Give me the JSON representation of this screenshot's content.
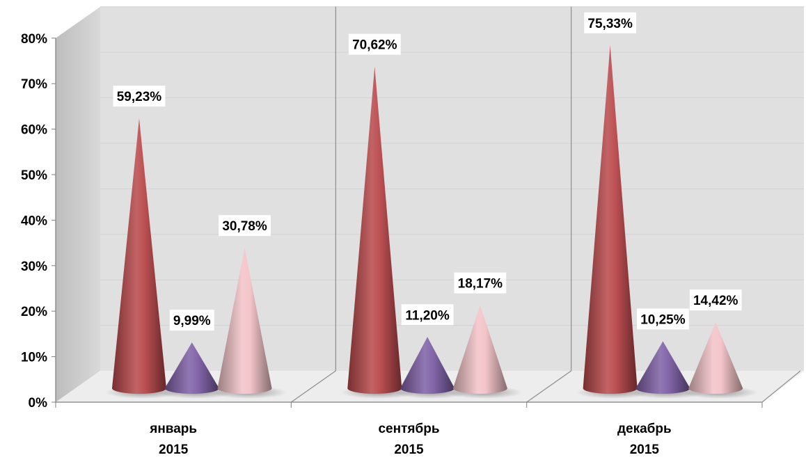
{
  "chart_data": {
    "type": "bar",
    "style": "3d-cone",
    "categories": [
      [
        "январь",
        "2015"
      ],
      [
        "сентябрь",
        "2015"
      ],
      [
        "декабрь",
        "2015"
      ]
    ],
    "series": [
      {
        "values": [
          59.23,
          70.62,
          75.33
        ],
        "labels": [
          "59,23%",
          "70,62%",
          "75,33%"
        ],
        "color": "#b8474a"
      },
      {
        "values": [
          9.99,
          11.2,
          10.25
        ],
        "labels": [
          "9,99%",
          "11,20%",
          "10,25%"
        ],
        "color": "#7e5fa6"
      },
      {
        "values": [
          30.78,
          18.17,
          14.42
        ],
        "labels": [
          "30,78%",
          "18,17%",
          "14,42%"
        ],
        "color": "#f2c2c6"
      }
    ],
    "ylim": [
      0,
      80
    ],
    "yticks": [
      0,
      10,
      20,
      30,
      40,
      50,
      60,
      70,
      80
    ],
    "ytick_labels": [
      "0%",
      "10%",
      "20%",
      "30%",
      "40%",
      "50%",
      "60%",
      "70%",
      "80%"
    ],
    "grid": true,
    "legend": "none",
    "title": "",
    "xlabel": "",
    "ylabel": ""
  }
}
